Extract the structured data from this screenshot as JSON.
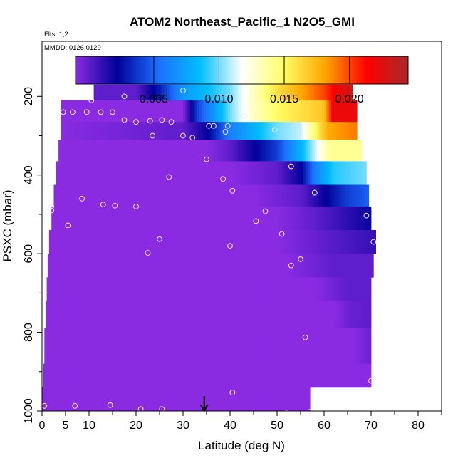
{
  "chart_data": {
    "type": "heatmap",
    "title": "ATOM2 Northeast_Pacific_1 N2O5_GMI",
    "flights_note": "Flts: 1,2",
    "date_note": "MMDD: 0126,0129",
    "xlabel": "Latitude (deg N)",
    "ylabel": "PSXC (mbar)",
    "xlim": [
      0,
      85
    ],
    "ylim": [
      1000,
      60
    ],
    "y_reversed": true,
    "x_ticks": [
      0,
      5,
      10,
      20,
      30,
      40,
      50,
      60,
      70,
      80
    ],
    "x_tick_labels": [
      "0",
      "5",
      "10",
      "20",
      "30",
      "40",
      "50",
      "60",
      "70",
      "80"
    ],
    "y_ticks": [
      200,
      400,
      600,
      800,
      1000
    ],
    "y_tick_labels": [
      "200",
      "400",
      "600",
      "800",
      "1000"
    ],
    "colorbar": {
      "min": -0.001,
      "max": 0.0245,
      "ticks": [
        0.005,
        0.01,
        0.015,
        0.02
      ],
      "tick_labels": [
        "0.005",
        "0.010",
        "0.015",
        "0.020"
      ],
      "colors": [
        "#8a2be2",
        "#00009a",
        "#1e6fff",
        "#00bfff",
        "#ffffff",
        "#ffff66",
        "#ffa500",
        "#ff0000",
        "#a52a2a"
      ]
    },
    "bands": [
      {
        "p_top": 170,
        "p_bot": 210,
        "x_start": 11,
        "x_end": 66,
        "stops": [
          [
            11,
            0.0
          ],
          [
            20,
            0.0
          ],
          [
            25,
            0.003
          ],
          [
            30,
            0.007
          ],
          [
            40,
            0.01
          ],
          [
            45,
            0.013
          ],
          [
            50,
            0.016
          ],
          [
            55,
            0.018
          ],
          [
            60,
            0.02
          ],
          [
            63,
            0.022
          ],
          [
            66,
            0.023
          ]
        ]
      },
      {
        "p_top": 210,
        "p_bot": 265,
        "x_start": 4,
        "x_end": 67,
        "stops": [
          [
            4,
            -0.001
          ],
          [
            30,
            -0.001
          ],
          [
            33,
            0.004
          ],
          [
            40,
            0.01
          ],
          [
            45,
            0.013
          ],
          [
            50,
            0.015
          ],
          [
            55,
            0.016
          ],
          [
            60,
            0.017
          ],
          [
            62,
            0.022
          ],
          [
            67,
            0.022
          ]
        ]
      },
      {
        "p_top": 265,
        "p_bot": 310,
        "x_start": 4,
        "x_end": 67,
        "stops": [
          [
            4,
            -0.001
          ],
          [
            30,
            0.0
          ],
          [
            35,
            0.002
          ],
          [
            40,
            0.006
          ],
          [
            45,
            0.008
          ],
          [
            50,
            0.01
          ],
          [
            55,
            0.011
          ],
          [
            59,
            0.016
          ],
          [
            61,
            0.018
          ],
          [
            67,
            0.019
          ]
        ]
      },
      {
        "p_top": 310,
        "p_bot": 365,
        "x_start": 3.5,
        "x_end": 68,
        "stops": [
          [
            3.5,
            -0.001
          ],
          [
            35,
            -0.001
          ],
          [
            40,
            0.0
          ],
          [
            45,
            0.002
          ],
          [
            50,
            0.004
          ],
          [
            55,
            0.008
          ],
          [
            58,
            0.011
          ],
          [
            61,
            0.014
          ],
          [
            68,
            0.014
          ]
        ]
      },
      {
        "p_top": 365,
        "p_bot": 425,
        "x_start": 3,
        "x_end": 69,
        "stops": [
          [
            3,
            -0.001
          ],
          [
            40,
            -0.001
          ],
          [
            50,
            0.0
          ],
          [
            55,
            0.002
          ],
          [
            58,
            0.006
          ],
          [
            62,
            0.009
          ],
          [
            69,
            0.01
          ]
        ]
      },
      {
        "p_top": 425,
        "p_bot": 480,
        "x_start": 2.5,
        "x_end": 69.5,
        "stops": [
          [
            2.5,
            -0.001
          ],
          [
            45,
            -0.001
          ],
          [
            55,
            0.0
          ],
          [
            60,
            0.002
          ],
          [
            65,
            0.004
          ],
          [
            69.5,
            0.005
          ]
        ]
      },
      {
        "p_top": 480,
        "p_bot": 540,
        "x_start": 2,
        "x_end": 70,
        "stops": [
          [
            2,
            -0.001
          ],
          [
            50,
            -0.001
          ],
          [
            58,
            0.0
          ],
          [
            70,
            0.002
          ]
        ]
      },
      {
        "p_top": 540,
        "p_bot": 600,
        "x_start": 1.5,
        "x_end": 71,
        "stops": [
          [
            1.5,
            -0.001
          ],
          [
            50,
            -0.001
          ],
          [
            60,
            0.0
          ],
          [
            71,
            0.001
          ]
        ]
      },
      {
        "p_top": 600,
        "p_bot": 660,
        "x_start": 1.2,
        "x_end": 70.5,
        "stops": [
          [
            1.2,
            -0.001
          ],
          [
            52,
            -0.001
          ],
          [
            62,
            0.0
          ],
          [
            70.5,
            0.0
          ]
        ]
      },
      {
        "p_top": 660,
        "p_bot": 720,
        "x_start": 1,
        "x_end": 70,
        "stops": [
          [
            1,
            -0.001
          ],
          [
            58,
            -0.001
          ],
          [
            65,
            0.0
          ],
          [
            70,
            0.0
          ]
        ]
      },
      {
        "p_top": 720,
        "p_bot": 790,
        "x_start": 0.8,
        "x_end": 70,
        "stops": [
          [
            0.8,
            -0.001
          ],
          [
            62,
            -0.001
          ],
          [
            66,
            -0.0002
          ],
          [
            70,
            0.0
          ]
        ]
      },
      {
        "p_top": 790,
        "p_bot": 880,
        "x_start": 0.5,
        "x_end": 70,
        "stops": [
          [
            0.5,
            -0.001
          ],
          [
            66,
            -0.001
          ],
          [
            70,
            -0.0003
          ]
        ]
      },
      {
        "p_top": 880,
        "p_bot": 940,
        "x_start": 0.3,
        "x_end": 70,
        "stops": [
          [
            0.3,
            -0.001
          ],
          [
            70,
            -0.001
          ]
        ]
      },
      {
        "p_top": 940,
        "p_bot": 1005,
        "x_start": 0,
        "x_end": 57,
        "stops": [
          [
            0,
            -0.001
          ],
          [
            57,
            -0.001
          ]
        ]
      }
    ],
    "flight_points": [
      [
        10.5,
        210
      ],
      [
        4.5,
        240
      ],
      [
        6.5,
        240
      ],
      [
        9.5,
        240
      ],
      [
        12.5,
        240
      ],
      [
        15,
        240
      ],
      [
        17.5,
        200
      ],
      [
        17.5,
        260
      ],
      [
        20,
        265
      ],
      [
        23,
        262
      ],
      [
        25.5,
        260
      ],
      [
        27.5,
        265
      ],
      [
        23.5,
        300
      ],
      [
        30,
        185
      ],
      [
        30,
        300
      ],
      [
        32,
        305
      ],
      [
        35.5,
        275
      ],
      [
        36.5,
        275
      ],
      [
        39.5,
        275
      ],
      [
        39,
        290
      ],
      [
        43,
        250
      ],
      [
        49.5,
        285
      ],
      [
        35,
        360
      ],
      [
        38.5,
        410
      ],
      [
        40.5,
        440
      ],
      [
        27,
        405
      ],
      [
        2,
        480
      ],
      [
        2,
        490
      ],
      [
        8.5,
        460
      ],
      [
        13,
        475
      ],
      [
        15.5,
        478
      ],
      [
        20,
        480
      ],
      [
        5.5,
        528
      ],
      [
        25,
        563
      ],
      [
        22.5,
        598
      ],
      [
        40,
        580
      ],
      [
        45.5,
        517
      ],
      [
        47.5,
        492
      ],
      [
        51,
        550
      ],
      [
        53,
        630
      ],
      [
        55,
        614
      ],
      [
        53,
        378
      ],
      [
        58,
        445
      ],
      [
        69,
        503
      ],
      [
        70.5,
        570
      ],
      [
        56,
        813
      ],
      [
        70,
        923
      ],
      [
        40.5,
        953
      ],
      [
        7,
        987
      ],
      [
        14.5,
        985
      ],
      [
        21,
        995
      ],
      [
        25.5,
        995
      ],
      [
        46,
        1007
      ],
      [
        52,
        1005
      ],
      [
        57,
        1002
      ],
      [
        0.5,
        987
      ]
    ],
    "marker_latitude": 34.5
  }
}
